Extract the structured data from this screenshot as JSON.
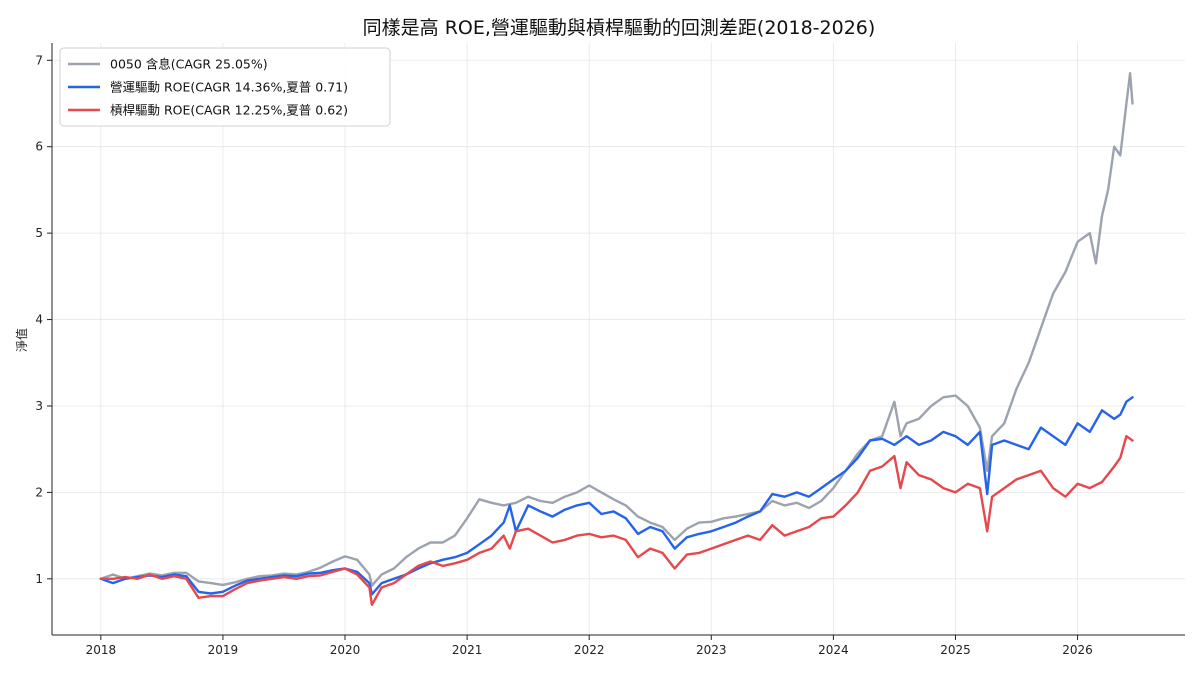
{
  "chart_data": {
    "type": "line",
    "title": "同樣是高 ROE,營運驅動與槓桿驅動的回測差距(2018-2026)",
    "xlabel": "",
    "ylabel": "淨值",
    "x_ticks": [
      "2018",
      "2019",
      "2020",
      "2021",
      "2022",
      "2023",
      "2024",
      "2025",
      "2026"
    ],
    "y_ticks": [
      1,
      2,
      3,
      4,
      5,
      6,
      7
    ],
    "xlim": [
      2017.6,
      2026.88
    ],
    "ylim": [
      0.35,
      7.2
    ],
    "grid": true,
    "legend_position": "top-left",
    "series": [
      {
        "name": "0050 含息(CAGR 25.05%)",
        "color": "#9ca3af",
        "points": [
          [
            2018.0,
            1.0
          ],
          [
            2018.1,
            1.05
          ],
          [
            2018.2,
            1.0
          ],
          [
            2018.3,
            1.03
          ],
          [
            2018.4,
            1.06
          ],
          [
            2018.5,
            1.04
          ],
          [
            2018.6,
            1.07
          ],
          [
            2018.7,
            1.07
          ],
          [
            2018.8,
            0.97
          ],
          [
            2018.9,
            0.95
          ],
          [
            2019.0,
            0.93
          ],
          [
            2019.1,
            0.96
          ],
          [
            2019.2,
            1.0
          ],
          [
            2019.3,
            1.03
          ],
          [
            2019.4,
            1.04
          ],
          [
            2019.5,
            1.06
          ],
          [
            2019.6,
            1.05
          ],
          [
            2019.7,
            1.08
          ],
          [
            2019.8,
            1.13
          ],
          [
            2019.9,
            1.2
          ],
          [
            2020.0,
            1.26
          ],
          [
            2020.1,
            1.22
          ],
          [
            2020.2,
            1.05
          ],
          [
            2020.22,
            0.92
          ],
          [
            2020.3,
            1.05
          ],
          [
            2020.4,
            1.12
          ],
          [
            2020.5,
            1.25
          ],
          [
            2020.6,
            1.35
          ],
          [
            2020.7,
            1.42
          ],
          [
            2020.8,
            1.42
          ],
          [
            2020.9,
            1.5
          ],
          [
            2021.0,
            1.7
          ],
          [
            2021.1,
            1.92
          ],
          [
            2021.2,
            1.88
          ],
          [
            2021.3,
            1.85
          ],
          [
            2021.4,
            1.88
          ],
          [
            2021.5,
            1.95
          ],
          [
            2021.6,
            1.9
          ],
          [
            2021.7,
            1.88
          ],
          [
            2021.8,
            1.95
          ],
          [
            2021.9,
            2.0
          ],
          [
            2022.0,
            2.08
          ],
          [
            2022.1,
            2.0
          ],
          [
            2022.2,
            1.92
          ],
          [
            2022.3,
            1.85
          ],
          [
            2022.4,
            1.72
          ],
          [
            2022.5,
            1.65
          ],
          [
            2022.6,
            1.6
          ],
          [
            2022.7,
            1.45
          ],
          [
            2022.8,
            1.58
          ],
          [
            2022.9,
            1.65
          ],
          [
            2023.0,
            1.66
          ],
          [
            2023.1,
            1.7
          ],
          [
            2023.2,
            1.72
          ],
          [
            2023.3,
            1.75
          ],
          [
            2023.4,
            1.78
          ],
          [
            2023.5,
            1.9
          ],
          [
            2023.6,
            1.85
          ],
          [
            2023.7,
            1.88
          ],
          [
            2023.8,
            1.82
          ],
          [
            2023.9,
            1.9
          ],
          [
            2024.0,
            2.05
          ],
          [
            2024.1,
            2.25
          ],
          [
            2024.2,
            2.45
          ],
          [
            2024.3,
            2.6
          ],
          [
            2024.4,
            2.65
          ],
          [
            2024.5,
            3.05
          ],
          [
            2024.55,
            2.65
          ],
          [
            2024.6,
            2.8
          ],
          [
            2024.7,
            2.85
          ],
          [
            2024.8,
            3.0
          ],
          [
            2024.9,
            3.1
          ],
          [
            2025.0,
            3.12
          ],
          [
            2025.1,
            3.0
          ],
          [
            2025.2,
            2.75
          ],
          [
            2025.26,
            2.25
          ],
          [
            2025.3,
            2.65
          ],
          [
            2025.4,
            2.8
          ],
          [
            2025.5,
            3.2
          ],
          [
            2025.6,
            3.5
          ],
          [
            2025.7,
            3.9
          ],
          [
            2025.8,
            4.3
          ],
          [
            2025.9,
            4.55
          ],
          [
            2026.0,
            4.9
          ],
          [
            2026.1,
            5.0
          ],
          [
            2026.15,
            4.65
          ],
          [
            2026.2,
            5.2
          ],
          [
            2026.25,
            5.5
          ],
          [
            2026.3,
            6.0
          ],
          [
            2026.35,
            5.9
          ],
          [
            2026.4,
            6.5
          ],
          [
            2026.43,
            6.85
          ],
          [
            2026.45,
            6.5
          ]
        ]
      },
      {
        "name": "營運驅動 ROE(CAGR 14.36%,夏普 0.71)",
        "color": "#2563eb",
        "points": [
          [
            2018.0,
            1.0
          ],
          [
            2018.1,
            0.95
          ],
          [
            2018.2,
            1.0
          ],
          [
            2018.3,
            1.02
          ],
          [
            2018.4,
            1.04
          ],
          [
            2018.5,
            1.02
          ],
          [
            2018.6,
            1.05
          ],
          [
            2018.7,
            1.03
          ],
          [
            2018.8,
            0.85
          ],
          [
            2018.9,
            0.83
          ],
          [
            2019.0,
            0.85
          ],
          [
            2019.1,
            0.92
          ],
          [
            2019.2,
            0.98
          ],
          [
            2019.3,
            1.0
          ],
          [
            2019.4,
            1.02
          ],
          [
            2019.5,
            1.04
          ],
          [
            2019.6,
            1.03
          ],
          [
            2019.7,
            1.06
          ],
          [
            2019.8,
            1.07
          ],
          [
            2019.9,
            1.1
          ],
          [
            2020.0,
            1.12
          ],
          [
            2020.1,
            1.08
          ],
          [
            2020.2,
            0.95
          ],
          [
            2020.22,
            0.82
          ],
          [
            2020.3,
            0.95
          ],
          [
            2020.4,
            1.0
          ],
          [
            2020.5,
            1.05
          ],
          [
            2020.6,
            1.12
          ],
          [
            2020.7,
            1.18
          ],
          [
            2020.8,
            1.22
          ],
          [
            2020.9,
            1.25
          ],
          [
            2021.0,
            1.3
          ],
          [
            2021.1,
            1.4
          ],
          [
            2021.2,
            1.5
          ],
          [
            2021.3,
            1.65
          ],
          [
            2021.35,
            1.85
          ],
          [
            2021.4,
            1.55
          ],
          [
            2021.5,
            1.85
          ],
          [
            2021.6,
            1.78
          ],
          [
            2021.7,
            1.72
          ],
          [
            2021.8,
            1.8
          ],
          [
            2021.9,
            1.85
          ],
          [
            2022.0,
            1.88
          ],
          [
            2022.1,
            1.75
          ],
          [
            2022.2,
            1.78
          ],
          [
            2022.3,
            1.7
          ],
          [
            2022.4,
            1.52
          ],
          [
            2022.5,
            1.6
          ],
          [
            2022.6,
            1.55
          ],
          [
            2022.7,
            1.35
          ],
          [
            2022.8,
            1.48
          ],
          [
            2022.9,
            1.52
          ],
          [
            2023.0,
            1.55
          ],
          [
            2023.1,
            1.6
          ],
          [
            2023.2,
            1.65
          ],
          [
            2023.3,
            1.72
          ],
          [
            2023.4,
            1.78
          ],
          [
            2023.5,
            1.98
          ],
          [
            2023.6,
            1.95
          ],
          [
            2023.7,
            2.0
          ],
          [
            2023.8,
            1.95
          ],
          [
            2023.9,
            2.05
          ],
          [
            2024.0,
            2.15
          ],
          [
            2024.1,
            2.25
          ],
          [
            2024.2,
            2.4
          ],
          [
            2024.3,
            2.6
          ],
          [
            2024.4,
            2.62
          ],
          [
            2024.5,
            2.55
          ],
          [
            2024.6,
            2.65
          ],
          [
            2024.7,
            2.55
          ],
          [
            2024.8,
            2.6
          ],
          [
            2024.9,
            2.7
          ],
          [
            2025.0,
            2.65
          ],
          [
            2025.1,
            2.55
          ],
          [
            2025.2,
            2.7
          ],
          [
            2025.26,
            1.98
          ],
          [
            2025.3,
            2.55
          ],
          [
            2025.4,
            2.6
          ],
          [
            2025.5,
            2.55
          ],
          [
            2025.6,
            2.5
          ],
          [
            2025.7,
            2.75
          ],
          [
            2025.8,
            2.65
          ],
          [
            2025.9,
            2.55
          ],
          [
            2026.0,
            2.8
          ],
          [
            2026.1,
            2.7
          ],
          [
            2026.2,
            2.95
          ],
          [
            2026.3,
            2.85
          ],
          [
            2026.35,
            2.9
          ],
          [
            2026.4,
            3.05
          ],
          [
            2026.45,
            3.1
          ]
        ]
      },
      {
        "name": "槓桿驅動 ROE(CAGR 12.25%,夏普 0.62)",
        "color": "#e5484d",
        "points": [
          [
            2018.0,
            1.0
          ],
          [
            2018.1,
            1.0
          ],
          [
            2018.2,
            1.02
          ],
          [
            2018.3,
            1.0
          ],
          [
            2018.4,
            1.05
          ],
          [
            2018.5,
            1.0
          ],
          [
            2018.6,
            1.03
          ],
          [
            2018.7,
            1.0
          ],
          [
            2018.8,
            0.78
          ],
          [
            2018.9,
            0.8
          ],
          [
            2019.0,
            0.8
          ],
          [
            2019.1,
            0.88
          ],
          [
            2019.2,
            0.95
          ],
          [
            2019.3,
            0.98
          ],
          [
            2019.4,
            1.0
          ],
          [
            2019.5,
            1.02
          ],
          [
            2019.6,
            1.0
          ],
          [
            2019.7,
            1.03
          ],
          [
            2019.8,
            1.04
          ],
          [
            2019.9,
            1.08
          ],
          [
            2020.0,
            1.12
          ],
          [
            2020.1,
            1.05
          ],
          [
            2020.2,
            0.9
          ],
          [
            2020.22,
            0.7
          ],
          [
            2020.3,
            0.9
          ],
          [
            2020.4,
            0.95
          ],
          [
            2020.5,
            1.05
          ],
          [
            2020.6,
            1.15
          ],
          [
            2020.7,
            1.2
          ],
          [
            2020.8,
            1.15
          ],
          [
            2020.9,
            1.18
          ],
          [
            2021.0,
            1.22
          ],
          [
            2021.1,
            1.3
          ],
          [
            2021.2,
            1.35
          ],
          [
            2021.3,
            1.5
          ],
          [
            2021.35,
            1.35
          ],
          [
            2021.4,
            1.55
          ],
          [
            2021.5,
            1.58
          ],
          [
            2021.6,
            1.5
          ],
          [
            2021.7,
            1.42
          ],
          [
            2021.8,
            1.45
          ],
          [
            2021.9,
            1.5
          ],
          [
            2022.0,
            1.52
          ],
          [
            2022.1,
            1.48
          ],
          [
            2022.2,
            1.5
          ],
          [
            2022.3,
            1.45
          ],
          [
            2022.4,
            1.25
          ],
          [
            2022.5,
            1.35
          ],
          [
            2022.6,
            1.3
          ],
          [
            2022.7,
            1.12
          ],
          [
            2022.8,
            1.28
          ],
          [
            2022.9,
            1.3
          ],
          [
            2023.0,
            1.35
          ],
          [
            2023.1,
            1.4
          ],
          [
            2023.2,
            1.45
          ],
          [
            2023.3,
            1.5
          ],
          [
            2023.4,
            1.45
          ],
          [
            2023.5,
            1.62
          ],
          [
            2023.6,
            1.5
          ],
          [
            2023.7,
            1.55
          ],
          [
            2023.8,
            1.6
          ],
          [
            2023.9,
            1.7
          ],
          [
            2024.0,
            1.72
          ],
          [
            2024.1,
            1.85
          ],
          [
            2024.2,
            2.0
          ],
          [
            2024.3,
            2.25
          ],
          [
            2024.4,
            2.3
          ],
          [
            2024.5,
            2.42
          ],
          [
            2024.55,
            2.05
          ],
          [
            2024.6,
            2.35
          ],
          [
            2024.7,
            2.2
          ],
          [
            2024.8,
            2.15
          ],
          [
            2024.9,
            2.05
          ],
          [
            2025.0,
            2.0
          ],
          [
            2025.1,
            2.1
          ],
          [
            2025.2,
            2.05
          ],
          [
            2025.26,
            1.55
          ],
          [
            2025.3,
            1.95
          ],
          [
            2025.4,
            2.05
          ],
          [
            2025.5,
            2.15
          ],
          [
            2025.6,
            2.2
          ],
          [
            2025.7,
            2.25
          ],
          [
            2025.8,
            2.05
          ],
          [
            2025.9,
            1.95
          ],
          [
            2026.0,
            2.1
          ],
          [
            2026.1,
            2.05
          ],
          [
            2026.2,
            2.12
          ],
          [
            2026.3,
            2.3
          ],
          [
            2026.35,
            2.4
          ],
          [
            2026.4,
            2.65
          ],
          [
            2026.45,
            2.6
          ]
        ]
      }
    ]
  }
}
